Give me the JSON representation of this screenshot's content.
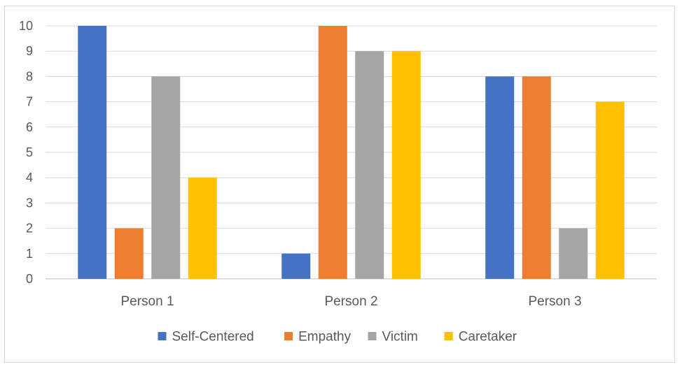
{
  "chart_data": {
    "type": "bar",
    "title": "",
    "xlabel": "",
    "ylabel": "",
    "categories": [
      "Person 1",
      "Person 2",
      "Person 3"
    ],
    "series": [
      {
        "name": "Self-Centered",
        "color": "#4472c4",
        "values": [
          10,
          1,
          8
        ]
      },
      {
        "name": "Empathy",
        "color": "#ed7d31",
        "values": [
          2,
          10,
          8
        ]
      },
      {
        "name": "Victim",
        "color": "#a5a5a5",
        "values": [
          8,
          9,
          2
        ]
      },
      {
        "name": "Caretaker",
        "color": "#ffc000",
        "values": [
          4,
          9,
          7
        ]
      }
    ],
    "ylim": [
      0,
      10
    ],
    "yticks": [
      "0",
      "1",
      "2",
      "3",
      "4",
      "5",
      "6",
      "7",
      "8",
      "9",
      "10"
    ],
    "grid": true,
    "legend_position": "bottom"
  }
}
